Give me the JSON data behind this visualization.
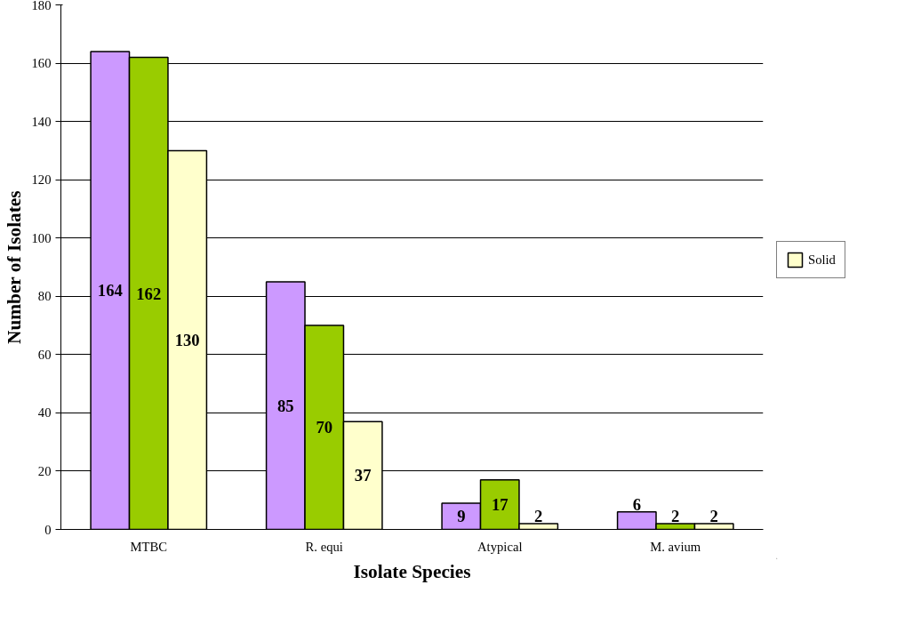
{
  "chart_data": {
    "type": "bar",
    "xlabel": "Isolate Species",
    "ylabel": "Number of Isolates",
    "categories": [
      "MTBC",
      "R. equi",
      "Atypical",
      "M. avium"
    ],
    "series": [
      {
        "color": "#cc99ff",
        "values": [
          164,
          85,
          9,
          6
        ]
      },
      {
        "color": "#99cc00",
        "values": [
          162,
          70,
          17,
          2
        ]
      },
      {
        "name": "Solid",
        "color": "#ffffcc",
        "values": [
          130,
          37,
          2,
          2
        ]
      }
    ],
    "ylim": [
      0,
      180
    ],
    "yticks": [
      0,
      20,
      40,
      60,
      80,
      100,
      120,
      140,
      160,
      180
    ],
    "grid": "y",
    "legend": "right",
    "data_labels": true
  }
}
